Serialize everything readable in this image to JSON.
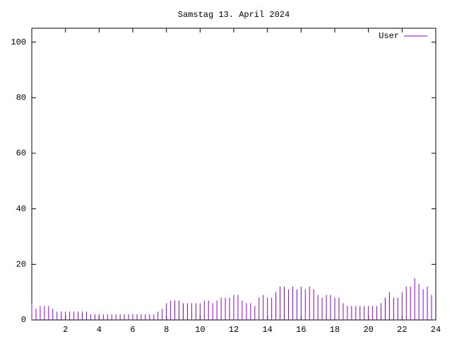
{
  "chart_data": {
    "type": "impulse",
    "title": "Samstag 13. April 2024",
    "x": [
      0,
      0.25,
      0.5,
      0.75,
      1,
      1.25,
      1.5,
      1.75,
      2,
      2.25,
      2.5,
      2.75,
      3,
      3.25,
      3.5,
      3.75,
      4,
      4.25,
      4.5,
      4.75,
      5,
      5.25,
      5.5,
      5.75,
      6,
      6.25,
      6.5,
      6.75,
      7,
      7.25,
      7.5,
      7.75,
      8,
      8.25,
      8.5,
      8.75,
      9,
      9.25,
      9.5,
      9.75,
      10,
      10.25,
      10.5,
      10.75,
      11,
      11.25,
      11.5,
      11.75,
      12,
      12.25,
      12.5,
      12.75,
      13,
      13.25,
      13.5,
      13.75,
      14,
      14.25,
      14.5,
      14.75,
      15,
      15.25,
      15.5,
      15.75,
      16,
      16.25,
      16.5,
      16.75,
      17,
      17.25,
      17.5,
      17.75,
      18,
      18.25,
      18.5,
      18.75,
      19,
      19.25,
      19.5,
      19.75,
      20,
      20.25,
      20.5,
      20.75,
      21,
      21.25,
      21.5,
      21.75,
      22,
      22.25,
      22.5,
      22.75,
      23,
      23.25,
      23.5,
      23.75
    ],
    "series": [
      {
        "name": "User",
        "color": "#9400d3",
        "values": [
          6,
          4,
          5,
          5,
          5,
          4,
          3,
          3,
          3,
          3,
          3,
          3,
          3,
          3,
          2,
          2,
          2,
          2,
          2,
          2,
          2,
          2,
          2,
          2,
          2,
          2,
          2,
          2,
          2,
          2,
          3,
          4,
          6,
          7,
          7,
          7,
          6,
          6,
          6,
          6,
          6,
          7,
          7,
          6,
          7,
          8,
          8,
          8,
          9,
          9,
          7,
          6,
          6,
          5,
          8,
          9,
          8,
          8,
          10,
          12,
          12,
          11,
          12,
          11,
          12,
          11,
          12,
          11,
          9,
          8,
          9,
          9,
          8,
          8,
          6,
          5,
          5,
          5,
          5,
          5,
          5,
          5,
          5,
          6,
          8,
          10,
          8,
          8,
          10,
          12,
          12,
          15,
          13,
          11,
          12,
          9
        ]
      }
    ],
    "xlim": [
      0,
      24
    ],
    "xticks": [
      2,
      4,
      6,
      8,
      10,
      12,
      14,
      16,
      18,
      20,
      22,
      24
    ],
    "ylim": [
      0,
      105
    ],
    "yticks": [
      0,
      20,
      40,
      60,
      80,
      100
    ],
    "legend": "top-right"
  }
}
